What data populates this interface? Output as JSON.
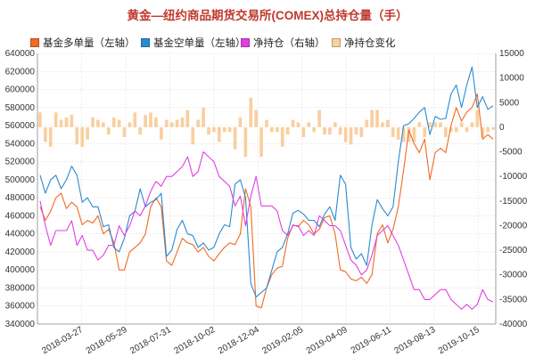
{
  "chart_data": {
    "type": "line",
    "title": "黄金—纽约商品期货交易所(COMEX)总持仓量（手）",
    "legend_position": "top",
    "grid": true,
    "colors": {
      "long": "#f06a23",
      "short": "#2b8ad0",
      "net": "#e040e0",
      "change": "#f9cf9f",
      "title": "#c0392b"
    },
    "x_ticks": [
      "2018-03-27",
      "2018-05-29",
      "2018-07-31",
      "2018-10-02",
      "2018-12-04",
      "2019-02-05",
      "2019-04-09",
      "2019-06-11",
      "2019-08-13",
      "2019-10-15"
    ],
    "y_left": {
      "min": 340000,
      "max": 640000,
      "ticks": [
        "340000",
        "360000",
        "380000",
        "400000",
        "420000",
        "440000",
        "460000",
        "480000",
        "500000",
        "520000",
        "540000",
        "560000",
        "580000",
        "600000",
        "620000",
        "640000"
      ]
    },
    "y_right": {
      "min": -40000,
      "max": 15000,
      "ticks": [
        "-40000",
        "-35000",
        "-30000",
        "-25000",
        "-20000",
        "-15000",
        "-10000",
        "-5000",
        "0",
        "5000",
        "10000",
        "15000"
      ]
    },
    "series": [
      {
        "name": "基金多单量（左轴）",
        "axis": "left",
        "kind": "line",
        "values": [
          470000,
          455000,
          465000,
          480000,
          485000,
          468000,
          475000,
          470000,
          450000,
          455000,
          452000,
          460000,
          440000,
          445000,
          430000,
          400000,
          400000,
          420000,
          425000,
          430000,
          440000,
          470000,
          480000,
          470000,
          410000,
          405000,
          420000,
          435000,
          430000,
          428000,
          420000,
          425000,
          415000,
          410000,
          418000,
          425000,
          430000,
          428000,
          440000,
          490000,
          470000,
          360000,
          358000,
          380000,
          395000,
          402000,
          404000,
          435000,
          450000,
          448000,
          455000,
          450000,
          440000,
          445000,
          458000,
          460000,
          440000,
          400000,
          398000,
          390000,
          388000,
          392000,
          385000,
          395000,
          440000,
          450000,
          430000,
          445000,
          470000,
          510000,
          555000,
          540000,
          530000,
          545000,
          500000,
          530000,
          535000,
          530000,
          560000,
          580000,
          565000,
          575000,
          580000,
          595000,
          545000,
          550000,
          545000
        ]
      },
      {
        "name": "基金空单量（左轴）",
        "axis": "left",
        "kind": "line",
        "values": [
          505000,
          485000,
          500000,
          505000,
          490000,
          500000,
          515000,
          505000,
          475000,
          480000,
          470000,
          470000,
          448000,
          450000,
          425000,
          420000,
          435000,
          460000,
          465000,
          490000,
          470000,
          475000,
          478000,
          485000,
          415000,
          422000,
          445000,
          455000,
          440000,
          438000,
          425000,
          430000,
          422000,
          425000,
          440000,
          450000,
          448000,
          495000,
          500000,
          480000,
          385000,
          370000,
          375000,
          380000,
          400000,
          420000,
          425000,
          440000,
          463000,
          466000,
          462000,
          455000,
          455000,
          448000,
          462000,
          470000,
          455000,
          505000,
          495000,
          425000,
          412000,
          418000,
          405000,
          450000,
          478000,
          468000,
          460000,
          470000,
          520000,
          560000,
          562000,
          568000,
          575000,
          580000,
          550000,
          570000,
          567000,
          568000,
          595000,
          605000,
          580000,
          605000,
          625000,
          580000,
          592000,
          578000,
          582000
        ]
      },
      {
        "name": "净持仓（右轴）",
        "axis": "right",
        "kind": "line",
        "values": [
          -15000,
          -20000,
          -24000,
          -21000,
          -21000,
          -21000,
          -19000,
          -24000,
          -22000,
          -25000,
          -25000,
          -27000,
          -26000,
          -24000,
          -24000,
          -20000,
          -22000,
          -20000,
          -17000,
          -18000,
          -16000,
          -13000,
          -11000,
          -12000,
          -10000,
          -10000,
          -9000,
          -8000,
          -6000,
          -10000,
          -9000,
          -5000,
          -6000,
          -7000,
          -10000,
          -11000,
          -12000,
          -16000,
          -14000,
          -20000,
          -14000,
          -10000,
          -16000,
          -16000,
          -16000,
          -17000,
          -21000,
          -22000,
          -20000,
          -20000,
          -22000,
          -21000,
          -22000,
          -18000,
          -19000,
          -20000,
          -20000,
          -21000,
          -24000,
          -27000,
          -28000,
          -30000,
          -29000,
          -26000,
          -22000,
          -21000,
          -20000,
          -22000,
          -24000,
          -27000,
          -30000,
          -33000,
          -33000,
          -35000,
          -35000,
          -34000,
          -33000,
          -33000,
          -35000,
          -36000,
          -37000,
          -36000,
          -37000,
          -36000,
          -33000,
          -35000,
          -35500
        ]
      },
      {
        "name": "净持仓变化",
        "axis": "right",
        "kind": "bar",
        "values": [
          3000,
          -3000,
          -4000,
          3000,
          1500,
          2000,
          2500,
          -3500,
          -4000,
          -2500,
          2000,
          1500,
          1000,
          -1500,
          2000,
          1500,
          -2000,
          1000,
          3000,
          -1500,
          2500,
          3000,
          2000,
          -2500,
          1500,
          1000,
          1500,
          2000,
          3500,
          -3500,
          1500,
          4000,
          -1500,
          -1000,
          -3000,
          -1000,
          -1000,
          -4500,
          2000,
          -6000,
          6000,
          3500,
          -6000,
          1500,
          -1000,
          -1000,
          -4000,
          -1500,
          1500,
          1000,
          -2000,
          1000,
          -1000,
          3500,
          -1500,
          -1500,
          1000,
          -1500,
          -3000,
          -3500,
          -1500,
          -2000,
          1500,
          3500,
          3500,
          1000,
          1500,
          -2000,
          -2500,
          -3000,
          -3000,
          -3000,
          1000,
          -2000,
          1000,
          1000,
          1000,
          -2000,
          -1000,
          -1000,
          1000,
          -1000,
          1000,
          3500,
          -2000,
          -1000,
          -500
        ]
      }
    ]
  }
}
